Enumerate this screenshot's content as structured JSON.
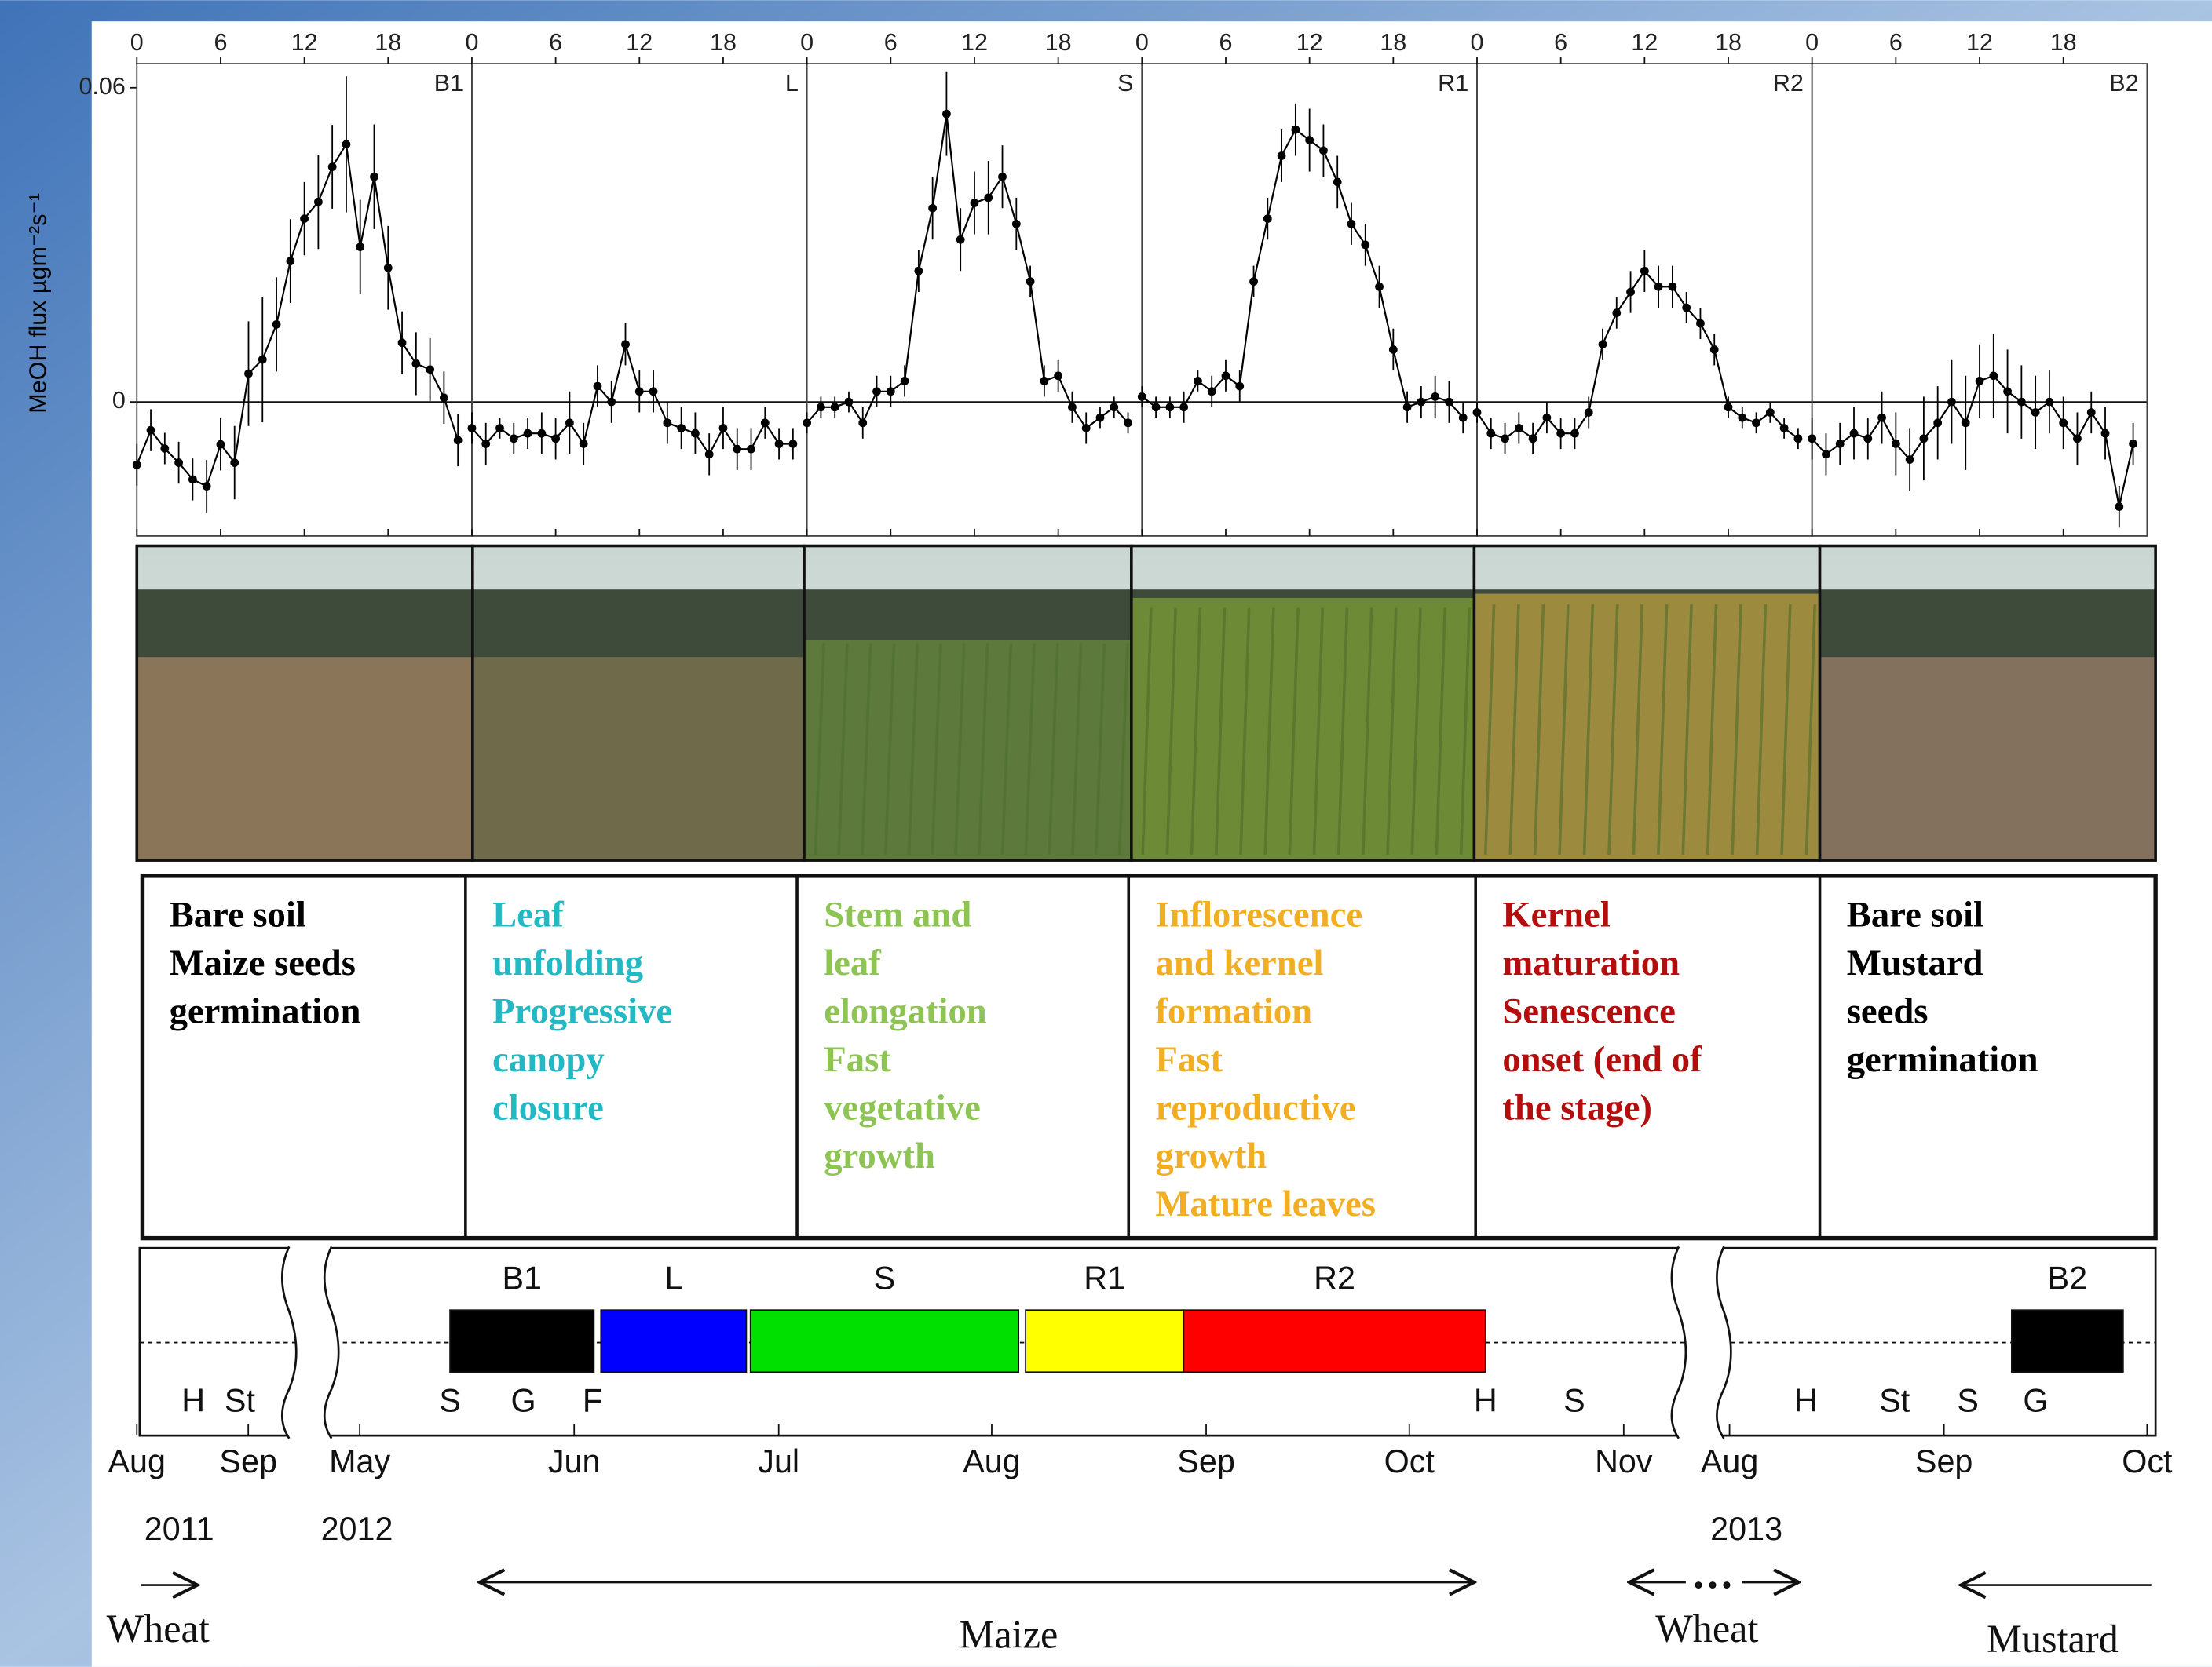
{
  "chart_data": {
    "type": "line",
    "y_label": "MeOH flux µgm⁻²s⁻¹",
    "x": [
      0,
      1,
      2,
      3,
      4,
      5,
      6,
      7,
      8,
      9,
      10,
      11,
      12,
      13,
      14,
      15,
      16,
      17,
      18,
      19,
      20,
      21,
      22,
      23
    ],
    "xlim": [
      0,
      24
    ],
    "xticks": [
      0,
      6,
      12,
      18
    ],
    "ylim": [
      -0.0256,
      0.0646
    ],
    "yticks": [
      0,
      0.06
    ],
    "zero_line": true,
    "color": "#000000",
    "series": [
      {
        "name": "B1",
        "values": [
          -0.012,
          -0.0054,
          -0.0089,
          -0.0116,
          -0.0148,
          -0.0161,
          -0.0081,
          -0.0116,
          0.0054,
          0.0081,
          0.0148,
          0.0269,
          0.035,
          0.0382,
          0.0449,
          0.0492,
          0.0296,
          0.043,
          0.0256,
          0.0113,
          0.0073,
          0.0062,
          0.0008,
          -0.0073
        ],
        "errors": [
          0.004,
          0.004,
          0.003,
          0.004,
          0.004,
          0.005,
          0.005,
          0.007,
          0.01,
          0.012,
          0.009,
          0.008,
          0.007,
          0.009,
          0.008,
          0.013,
          0.009,
          0.01,
          0.008,
          0.006,
          0.006,
          0.006,
          0.005,
          0.005
        ]
      },
      {
        "name": "L",
        "values": [
          -0.005,
          -0.008,
          -0.005,
          -0.007,
          -0.006,
          -0.006,
          -0.007,
          -0.004,
          -0.008,
          0.003,
          0.0,
          0.011,
          0.002,
          0.002,
          -0.004,
          -0.005,
          -0.006,
          -0.01,
          -0.005,
          -0.009,
          -0.009,
          -0.004,
          -0.008,
          -0.008
        ],
        "errors": [
          0.003,
          0.004,
          0.002,
          0.003,
          0.003,
          0.004,
          0.004,
          0.006,
          0.004,
          0.004,
          0.004,
          0.004,
          0.004,
          0.004,
          0.004,
          0.004,
          0.004,
          0.004,
          0.004,
          0.004,
          0.004,
          0.003,
          0.003,
          0.003
        ]
      },
      {
        "name": "S",
        "values": [
          -0.004,
          -0.001,
          -0.001,
          0.0,
          -0.004,
          0.002,
          0.002,
          0.004,
          0.025,
          0.037,
          0.055,
          0.031,
          0.038,
          0.039,
          0.043,
          0.034,
          0.023,
          0.004,
          0.005,
          -0.001,
          -0.005,
          -0.003,
          -0.001,
          -0.004
        ],
        "errors": [
          0.002,
          0.002,
          0.002,
          0.002,
          0.003,
          0.003,
          0.003,
          0.003,
          0.004,
          0.006,
          0.008,
          0.006,
          0.006,
          0.007,
          0.006,
          0.005,
          0.003,
          0.003,
          0.003,
          0.003,
          0.003,
          0.002,
          0.002,
          0.002
        ]
      },
      {
        "name": "R1",
        "values": [
          0.001,
          -0.001,
          -0.001,
          -0.001,
          0.004,
          0.002,
          0.005,
          0.003,
          0.023,
          0.035,
          0.047,
          0.052,
          0.05,
          0.048,
          0.042,
          0.034,
          0.03,
          0.022,
          0.01,
          -0.001,
          0.0,
          0.001,
          0.0,
          -0.003
        ],
        "errors": [
          0.002,
          0.002,
          0.002,
          0.003,
          0.002,
          0.003,
          0.003,
          0.003,
          0.003,
          0.004,
          0.005,
          0.005,
          0.006,
          0.005,
          0.005,
          0.004,
          0.004,
          0.004,
          0.004,
          0.003,
          0.003,
          0.004,
          0.004,
          0.003
        ]
      },
      {
        "name": "R2",
        "values": [
          -0.002,
          -0.006,
          -0.007,
          -0.005,
          -0.007,
          -0.003,
          -0.006,
          -0.006,
          -0.002,
          0.011,
          0.017,
          0.021,
          0.025,
          0.022,
          0.022,
          0.018,
          0.015,
          0.01,
          -0.001,
          -0.003,
          -0.004,
          -0.002,
          -0.005,
          -0.007
        ],
        "errors": [
          0.002,
          0.003,
          0.003,
          0.003,
          0.003,
          0.003,
          0.003,
          0.003,
          0.003,
          0.003,
          0.003,
          0.004,
          0.004,
          0.004,
          0.004,
          0.003,
          0.003,
          0.003,
          0.002,
          0.002,
          0.002,
          0.002,
          0.002,
          0.002
        ]
      },
      {
        "name": "B2",
        "values": [
          -0.007,
          -0.01,
          -0.008,
          -0.006,
          -0.007,
          -0.003,
          -0.008,
          -0.011,
          -0.007,
          -0.004,
          0.0,
          -0.004,
          0.004,
          0.005,
          0.002,
          0.0,
          -0.002,
          0.0,
          -0.004,
          -0.007,
          -0.002,
          -0.006,
          -0.02,
          -0.008
        ],
        "errors": [
          0.004,
          0.004,
          0.004,
          0.005,
          0.004,
          0.005,
          0.006,
          0.006,
          0.008,
          0.007,
          0.008,
          0.009,
          0.007,
          0.008,
          0.008,
          0.007,
          0.007,
          0.006,
          0.005,
          0.005,
          0.004,
          0.005,
          0.004,
          0.004
        ]
      }
    ]
  },
  "stages": [
    {
      "color": "#000000",
      "lines": [
        "Bare soil",
        "Maize seeds",
        "germination"
      ]
    },
    {
      "color": "#22b8c4",
      "lines": [
        "Leaf",
        "unfolding",
        "Progressive",
        "canopy",
        "closure"
      ]
    },
    {
      "color": "#8dc454",
      "lines": [
        "Stem and",
        "leaf",
        "elongation",
        "Fast",
        "vegetative",
        "growth"
      ]
    },
    {
      "color": "#f2ae22",
      "lines": [
        "Inflorescence",
        "and kernel",
        "formation",
        "Fast",
        "reproductive",
        "growth",
        "Mature leaves"
      ]
    },
    {
      "color": "#b40d0d",
      "lines": [
        "Kernel",
        "maturation",
        "Senescence",
        "onset (end of",
        "the stage)"
      ]
    },
    {
      "color": "#000000",
      "lines": [
        "Bare soil",
        "Mustard",
        "seeds",
        "germination"
      ]
    }
  ],
  "timeline": {
    "months": [
      "Aug",
      "Sep",
      "May",
      "Jun",
      "Jul",
      "Aug",
      "Sep",
      "Oct",
      "Nov",
      "Aug",
      "Sep",
      "Oct"
    ],
    "years": [
      "2011",
      "2012",
      "2013"
    ],
    "phases": [
      {
        "label": "B1",
        "color": "#000000"
      },
      {
        "label": "L",
        "color": "#0000ff"
      },
      {
        "label": "S",
        "color": "#00e000"
      },
      {
        "label": "R1",
        "color": "#ffff00"
      },
      {
        "label": "R2",
        "color": "#ff0000"
      },
      {
        "label": "B2",
        "color": "#000000"
      }
    ],
    "events": [
      "H",
      "St",
      "S",
      "G",
      "F",
      "H",
      "S",
      "H",
      "St",
      "S",
      "G"
    ],
    "crops": [
      "Wheat",
      "Maize",
      "Wheat",
      "Mustard"
    ]
  }
}
